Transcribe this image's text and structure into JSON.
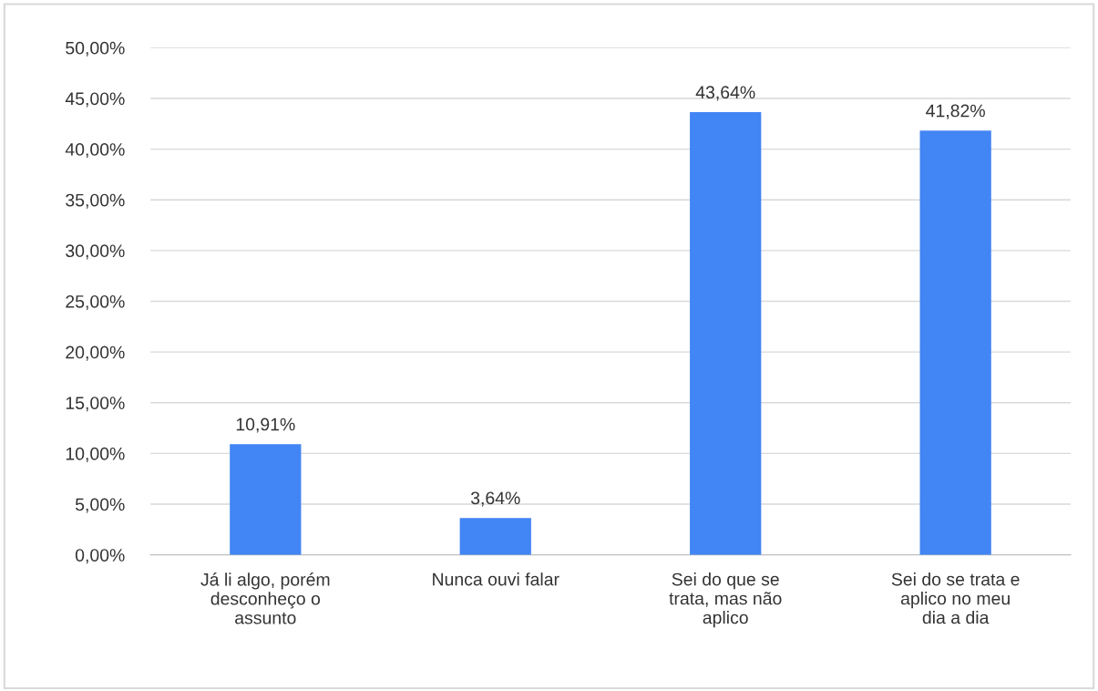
{
  "chart_data": {
    "type": "bar",
    "categories": [
      "Já li algo, porém\ndesconheço o\nassunto",
      "Nunca ouvi falar",
      "Sei do que se\ntrata, mas não\naplico",
      "Sei do se trata e\naplico no meu\ndia a dia"
    ],
    "values": [
      10.91,
      3.64,
      43.64,
      41.82
    ],
    "value_labels": [
      "10,91%",
      "3,64%",
      "43,64%",
      "41,82%"
    ],
    "color": "#4285f4",
    "ylim": [
      0,
      50
    ],
    "yticks": [
      {
        "value": 0,
        "label": "0,00%"
      },
      {
        "value": 5,
        "label": "5,00%"
      },
      {
        "value": 10,
        "label": "10,00%"
      },
      {
        "value": 15,
        "label": "15,00%"
      },
      {
        "value": 20,
        "label": "20,00%"
      },
      {
        "value": 25,
        "label": "25,00%"
      },
      {
        "value": 30,
        "label": "30,00%"
      },
      {
        "value": 35,
        "label": "35,00%"
      },
      {
        "value": 40,
        "label": "40,00%"
      },
      {
        "value": 45,
        "label": "45,00%"
      },
      {
        "value": 50,
        "label": "50,00%"
      }
    ],
    "grid": "y",
    "legend": false
  }
}
